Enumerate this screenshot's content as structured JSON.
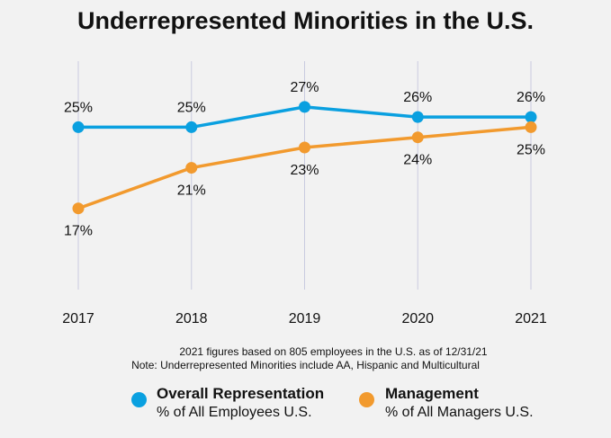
{
  "chart_data": {
    "type": "line",
    "title": "Underrepresented Minorities in the U.S.",
    "categories": [
      "2017",
      "2018",
      "2019",
      "2020",
      "2021"
    ],
    "series": [
      {
        "name": "Overall Representation",
        "subtitle": "% of All Employees U.S.",
        "values": [
          25,
          25,
          27,
          26,
          26
        ],
        "labels": [
          "25%",
          "25%",
          "27%",
          "26%",
          "26%"
        ],
        "label_position": "above",
        "color": "#0aa0e0"
      },
      {
        "name": "Management",
        "subtitle": "% of All Managers U.S.",
        "values": [
          17,
          21,
          23,
          24,
          25
        ],
        "labels": [
          "17%",
          "21%",
          "23%",
          "24%",
          "25%"
        ],
        "label_position": "below",
        "color": "#f29a2e"
      }
    ],
    "ylim": [
      9,
      30
    ],
    "grid": "vertical lines",
    "legend": "bottom"
  },
  "notes": {
    "line1": "2021 figures based on 805 employees in the U.S. as of 12/31/21",
    "line2": "Note: Underrepresented Minorities include AA, Hispanic and Multicultural"
  },
  "colors": {
    "background": "#f2f2f2",
    "gridline": "#c9cbe0",
    "text": "#111111"
  }
}
